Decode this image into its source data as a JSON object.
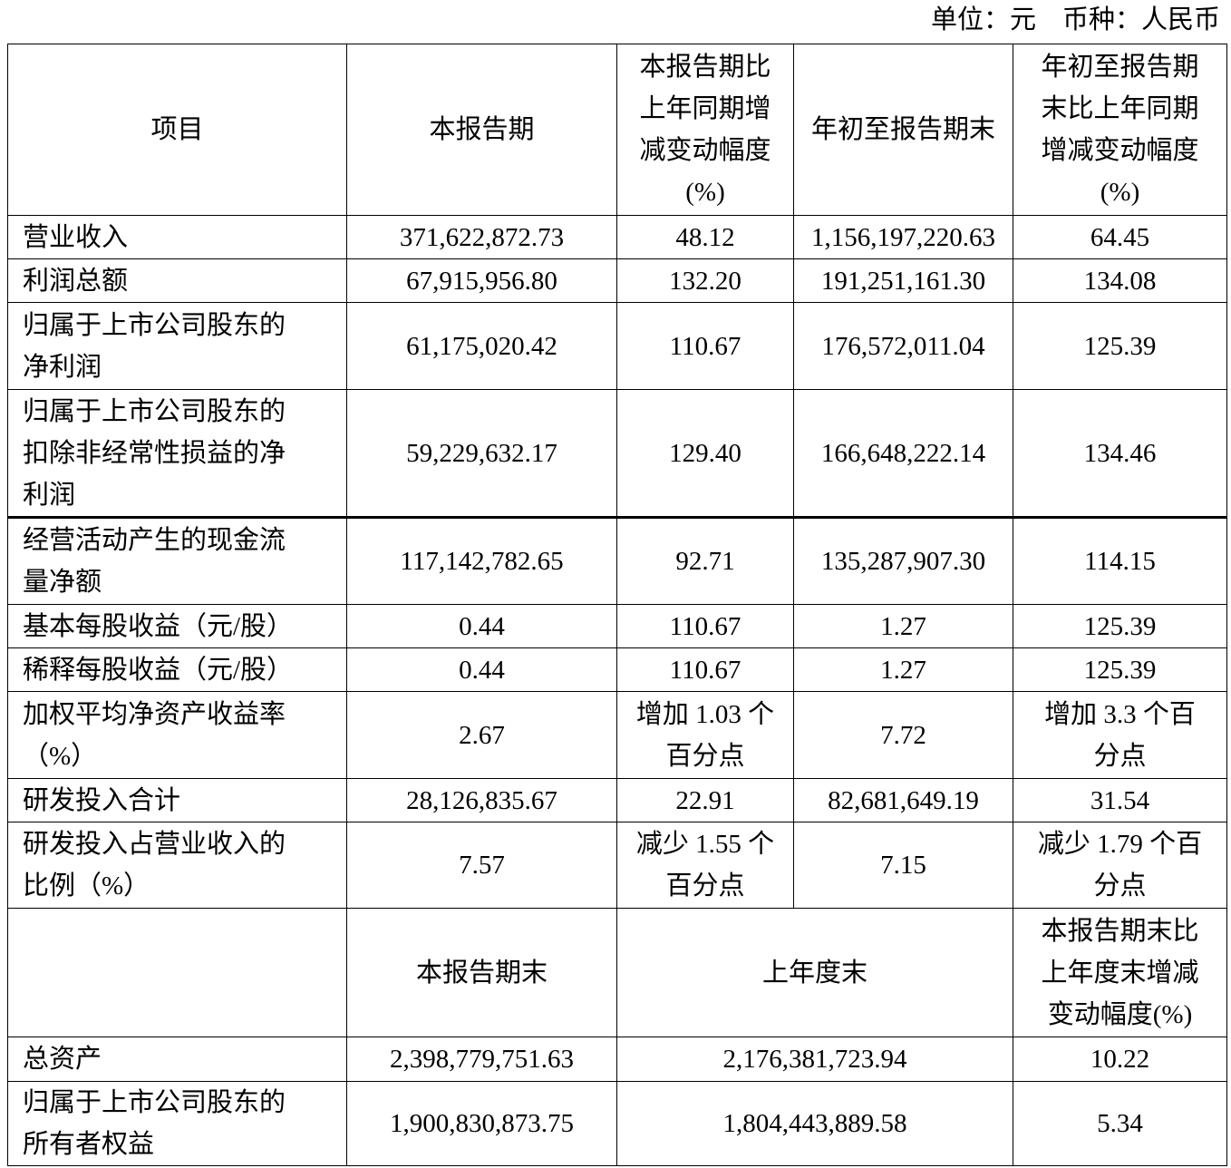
{
  "unit_label": "单位：元　币种：人民币",
  "header": [
    "项目",
    "本报告期",
    "本报告期比\n上年同期增\n减变动幅度\n(%)",
    "年初至报告期末",
    "年初至报告期\n末比上年同期\n增减变动幅度\n(%)"
  ],
  "rows": [
    [
      "营业收入",
      "371,622,872.73",
      "48.12",
      "1,156,197,220.63",
      "64.45"
    ],
    [
      "利润总额",
      "67,915,956.80",
      "132.20",
      "191,251,161.30",
      "134.08"
    ],
    [
      "归属于上市公司股东的\n净利润",
      "61,175,020.42",
      "110.67",
      "176,572,011.04",
      "125.39"
    ],
    [
      "归属于上市公司股东的\n扣除非经常性损益的净\n利润",
      "59,229,632.17",
      "129.40",
      "166,648,222.14",
      "134.46"
    ],
    [
      "经营活动产生的现金流\n量净额",
      "117,142,782.65",
      "92.71",
      "135,287,907.30",
      "114.15"
    ],
    [
      "基本每股收益（元/股）",
      "0.44",
      "110.67",
      "1.27",
      "125.39"
    ],
    [
      "稀释每股收益（元/股）",
      "0.44",
      "110.67",
      "1.27",
      "125.39"
    ],
    [
      "加权平均净资产收益率\n（%）",
      "2.67",
      "增加 1.03 个\n百分点",
      "7.72",
      "增加 3.3 个百\n分点"
    ],
    [
      "研发投入合计",
      "28,126,835.67",
      "22.91",
      "82,681,649.19",
      "31.54"
    ],
    [
      "研发投入占营业收入的\n比例（%）",
      "7.57",
      "减少 1.55 个\n百分点",
      "7.15",
      "减少 1.79 个百\n分点"
    ]
  ],
  "header2": [
    "",
    "本报告期末",
    "上年度末",
    "本报告期末比\n上年度末增减\n变动幅度(%)"
  ],
  "rows2": [
    [
      "总资产",
      "2,398,779,751.63",
      "2,176,381,723.94",
      "10.22"
    ],
    [
      "归属于上市公司股东的\n所有者权益",
      "1,900,830,873.75",
      "1,804,443,889.58",
      "5.34"
    ]
  ]
}
